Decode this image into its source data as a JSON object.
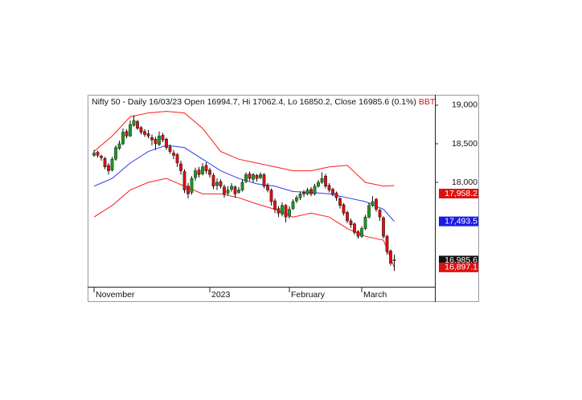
{
  "chart_data": {
    "type": "candlestick",
    "title": "Nifty 50 - Daily 16/03/23 Open 16994.7, Hi 17062.4, Lo 16850.2, Close 16985.6 (0.1%)",
    "indicator": "BBT(",
    "categories": [
      "November",
      null,
      null,
      null,
      null,
      null,
      null,
      null,
      null,
      null,
      null,
      null,
      null,
      null,
      null,
      null,
      null,
      null,
      null,
      null,
      null,
      null,
      null,
      null,
      null,
      null,
      null,
      null,
      null,
      null,
      null,
      null,
      "2023",
      null,
      null,
      null,
      null,
      null,
      null,
      null,
      null,
      null,
      null,
      null,
      null,
      null,
      null,
      null,
      null,
      null,
      null,
      null,
      null,
      null,
      "February",
      null,
      null,
      null,
      null,
      null,
      null,
      null,
      null,
      null,
      null,
      null,
      null,
      null,
      null,
      null,
      null,
      null,
      null,
      null,
      "March",
      null,
      null,
      null,
      null,
      null,
      null,
      null,
      null,
      null
    ],
    "open": [
      18350,
      18390,
      18340,
      18310,
      18220,
      18160,
      18300,
      18440,
      18500,
      18660,
      18600,
      18740,
      18790,
      18710,
      18660,
      18630,
      18580,
      18560,
      18490,
      18610,
      18560,
      18460,
      18380,
      18360,
      18240,
      18140,
      17950,
      17870,
      18060,
      18160,
      18110,
      18220,
      18160,
      18090,
      17960,
      18010,
      17940,
      17860,
      17910,
      17940,
      17870,
      17900,
      18010,
      18110,
      18040,
      18090,
      18060,
      18100,
      17960,
      17900,
      17760,
      17660,
      17590,
      17700,
      17560,
      17660,
      17760,
      17800,
      17870,
      17850,
      17910,
      17850,
      17950,
      18000,
      18080,
      17960,
      17910,
      17860,
      17790,
      17710,
      17610,
      17500,
      17460,
      17360,
      17300,
      17400,
      17550,
      17700,
      17780,
      17640,
      17540,
      17300,
      17110,
      16994.7
    ],
    "high": [
      18420,
      18410,
      18360,
      18330,
      18250,
      18330,
      18480,
      18540,
      18700,
      18690,
      18800,
      18870,
      18810,
      18730,
      18690,
      18680,
      18620,
      18590,
      18660,
      18640,
      18580,
      18490,
      18420,
      18380,
      18280,
      18170,
      17990,
      18080,
      18190,
      18200,
      18250,
      18260,
      18190,
      18120,
      18050,
      18040,
      17970,
      17950,
      17990,
      17960,
      17940,
      18040,
      18130,
      18140,
      18120,
      18110,
      18130,
      18120,
      17990,
      17920,
      17790,
      17690,
      17740,
      17720,
      17690,
      17780,
      17830,
      17880,
      17900,
      17930,
      17940,
      17980,
      18030,
      18130,
      18110,
      17990,
      17930,
      17880,
      17810,
      17730,
      17630,
      17530,
      17480,
      17380,
      17430,
      17580,
      17740,
      17820,
      17800,
      17660,
      17560,
      17320,
      17130,
      17062.4
    ],
    "low": [
      18330,
      18320,
      18280,
      18170,
      18100,
      18140,
      18280,
      18420,
      18480,
      18570,
      18590,
      18720,
      18680,
      18620,
      18590,
      18570,
      18480,
      18420,
      18470,
      18520,
      18420,
      18370,
      18300,
      18200,
      18100,
      17860,
      17790,
      17840,
      18020,
      18060,
      18090,
      18110,
      18060,
      17910,
      17900,
      17920,
      17800,
      17830,
      17880,
      17800,
      17850,
      17880,
      17990,
      18020,
      18000,
      18010,
      18040,
      17920,
      17870,
      17700,
      17600,
      17550,
      17560,
      17480,
      17530,
      17640,
      17730,
      17770,
      17810,
      17830,
      17820,
      17830,
      17930,
      17980,
      17920,
      17870,
      17820,
      17760,
      17660,
      17570,
      17470,
      17410,
      17320,
      17270,
      17280,
      17380,
      17530,
      17680,
      17620,
      17500,
      17270,
      17060,
      16920,
      16850.2
    ],
    "close": [
      18380,
      18350,
      18320,
      18200,
      18150,
      18300,
      18450,
      18500,
      18650,
      18600,
      18750,
      18800,
      18700,
      18650,
      18620,
      18600,
      18550,
      18500,
      18600,
      18550,
      18450,
      18400,
      18350,
      18250,
      18150,
      17900,
      17850,
      18050,
      18150,
      18100,
      18200,
      18150,
      18100,
      17950,
      18000,
      17950,
      17850,
      17900,
      17950,
      17850,
      17900,
      18000,
      18100,
      18050,
      18100,
      18050,
      18100,
      17950,
      17900,
      17750,
      17650,
      17600,
      17700,
      17550,
      17650,
      17750,
      17800,
      17850,
      17850,
      17900,
      17850,
      17950,
      18000,
      18050,
      17950,
      17900,
      17850,
      17800,
      17700,
      17600,
      17500,
      17450,
      17350,
      17300,
      17400,
      17550,
      17700,
      17750,
      17650,
      17550,
      17300,
      17100,
      16950,
      16985.6
    ],
    "up_color": "#1f9a1f",
    "down_color": "#e01010",
    "bands": [
      {
        "color": "#ff1a1a",
        "x": [
          0,
          5,
          10,
          15,
          20,
          25,
          30,
          35,
          40,
          45,
          50,
          55,
          60,
          65,
          70,
          75,
          80,
          83
        ],
        "values": [
          18400,
          18600,
          18850,
          18900,
          18920,
          18900,
          18700,
          18400,
          18300,
          18250,
          18200,
          18150,
          18150,
          18200,
          18220,
          18000,
          17950,
          17958.2
        ]
      },
      {
        "color": "#2a3cf0",
        "x": [
          0,
          5,
          10,
          15,
          20,
          25,
          30,
          35,
          40,
          45,
          50,
          55,
          60,
          65,
          70,
          75,
          80,
          83
        ],
        "values": [
          17950,
          18050,
          18250,
          18400,
          18480,
          18450,
          18300,
          18150,
          18050,
          17980,
          17950,
          17880,
          17870,
          17850,
          17800,
          17750,
          17650,
          17493.5
        ]
      },
      {
        "color": "#ff1a1a",
        "x": [
          0,
          5,
          10,
          15,
          20,
          25,
          30,
          35,
          40,
          45,
          50,
          55,
          60,
          65,
          70,
          75,
          80,
          83
        ],
        "values": [
          17550,
          17700,
          17900,
          18000,
          18050,
          17950,
          17850,
          17850,
          17800,
          17720,
          17650,
          17550,
          17600,
          17550,
          17400,
          17300,
          17250,
          16897.1
        ]
      }
    ],
    "last_labels": [
      {
        "value": 17958.2,
        "label": "17,958.2",
        "color": "#e01010"
      },
      {
        "value": 17493.5,
        "label": "17,493.5",
        "color": "#1a1ae6"
      },
      {
        "value": 16985.6,
        "label": "16,985.6",
        "color": "#111111"
      },
      {
        "value": 16897.1,
        "label": "16,897.1",
        "color": "#e01010"
      }
    ],
    "ylim": [
      16646,
      19135
    ],
    "yticks": [
      {
        "value": 19000,
        "label": "19,000"
      },
      {
        "value": 18500,
        "label": "18,500"
      },
      {
        "value": 18000,
        "label": "18,000"
      }
    ]
  }
}
